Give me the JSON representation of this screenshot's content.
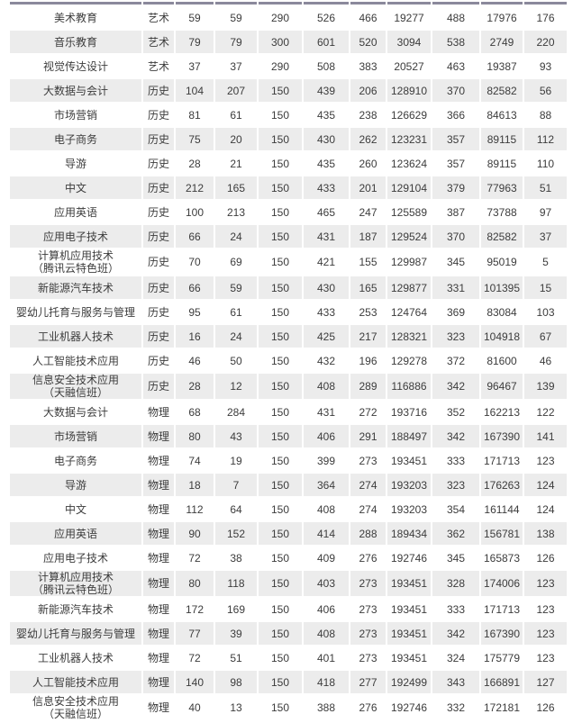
{
  "colors": {
    "row_shaded": "#ececec",
    "top_strip": "#8b899c",
    "text": "#3c3c3c",
    "background": "#ffffff"
  },
  "table": {
    "column_count": 11,
    "rows": [
      {
        "major": "美术教育",
        "category": "艺术",
        "values": [
          "59",
          "59",
          "290",
          "526",
          "466",
          "19277",
          "488",
          "17976",
          "176"
        ]
      },
      {
        "major": "音乐教育",
        "category": "艺术",
        "values": [
          "79",
          "79",
          "300",
          "601",
          "520",
          "3094",
          "538",
          "2749",
          "220"
        ]
      },
      {
        "major": "视觉传达设计",
        "category": "艺术",
        "values": [
          "37",
          "37",
          "290",
          "508",
          "383",
          "20527",
          "463",
          "19387",
          "93"
        ]
      },
      {
        "major": "大数据与会计",
        "category": "历史",
        "values": [
          "104",
          "207",
          "150",
          "439",
          "206",
          "128910",
          "370",
          "82582",
          "56"
        ]
      },
      {
        "major": "市场营销",
        "category": "历史",
        "values": [
          "81",
          "61",
          "150",
          "435",
          "238",
          "126629",
          "366",
          "84613",
          "88"
        ]
      },
      {
        "major": "电子商务",
        "category": "历史",
        "values": [
          "75",
          "20",
          "150",
          "430",
          "262",
          "123231",
          "357",
          "89115",
          "112"
        ]
      },
      {
        "major": "导游",
        "category": "历史",
        "values": [
          "28",
          "21",
          "150",
          "435",
          "260",
          "123624",
          "357",
          "89115",
          "110"
        ]
      },
      {
        "major": "中文",
        "category": "历史",
        "values": [
          "212",
          "165",
          "150",
          "433",
          "201",
          "129104",
          "379",
          "77963",
          "51"
        ]
      },
      {
        "major": "应用英语",
        "category": "历史",
        "values": [
          "100",
          "213",
          "150",
          "465",
          "247",
          "125589",
          "387",
          "73788",
          "97"
        ]
      },
      {
        "major": "应用电子技术",
        "category": "历史",
        "values": [
          "66",
          "24",
          "150",
          "431",
          "187",
          "129524",
          "370",
          "82582",
          "37"
        ]
      },
      {
        "major": "计算机应用技术\n（腾讯云特色班）",
        "category": "历史",
        "values": [
          "70",
          "69",
          "150",
          "421",
          "155",
          "129987",
          "345",
          "95019",
          "5"
        ]
      },
      {
        "major": "新能源汽车技术",
        "category": "历史",
        "values": [
          "66",
          "59",
          "150",
          "430",
          "165",
          "129877",
          "331",
          "101395",
          "15"
        ]
      },
      {
        "major": "婴幼儿托育与服务与管理",
        "category": "历史",
        "values": [
          "95",
          "61",
          "150",
          "433",
          "253",
          "124764",
          "369",
          "83084",
          "103"
        ]
      },
      {
        "major": "工业机器人技术",
        "category": "历史",
        "values": [
          "16",
          "24",
          "150",
          "425",
          "217",
          "128321",
          "323",
          "104918",
          "67"
        ]
      },
      {
        "major": "人工智能技术应用",
        "category": "历史",
        "values": [
          "46",
          "50",
          "150",
          "432",
          "196",
          "129278",
          "372",
          "81600",
          "46"
        ]
      },
      {
        "major": "信息安全技术应用\n（天融信班）",
        "category": "历史",
        "values": [
          "28",
          "12",
          "150",
          "408",
          "289",
          "116886",
          "342",
          "96467",
          "139"
        ]
      },
      {
        "major": "大数据与会计",
        "category": "物理",
        "values": [
          "68",
          "284",
          "150",
          "431",
          "272",
          "193716",
          "352",
          "162213",
          "122"
        ]
      },
      {
        "major": "市场营销",
        "category": "物理",
        "values": [
          "80",
          "43",
          "150",
          "406",
          "291",
          "188497",
          "342",
          "167390",
          "141"
        ]
      },
      {
        "major": "电子商务",
        "category": "物理",
        "values": [
          "74",
          "19",
          "150",
          "399",
          "273",
          "193451",
          "333",
          "171713",
          "123"
        ]
      },
      {
        "major": "导游",
        "category": "物理",
        "values": [
          "18",
          "7",
          "150",
          "364",
          "274",
          "193203",
          "323",
          "176263",
          "124"
        ]
      },
      {
        "major": "中文",
        "category": "物理",
        "values": [
          "112",
          "64",
          "150",
          "408",
          "274",
          "193203",
          "354",
          "161144",
          "124"
        ]
      },
      {
        "major": "应用英语",
        "category": "物理",
        "values": [
          "90",
          "152",
          "150",
          "414",
          "288",
          "189434",
          "362",
          "156781",
          "138"
        ]
      },
      {
        "major": "应用电子技术",
        "category": "物理",
        "values": [
          "72",
          "38",
          "150",
          "409",
          "276",
          "192746",
          "345",
          "165873",
          "126"
        ]
      },
      {
        "major": "计算机应用技术\n（腾讯云特色班）",
        "category": "物理",
        "values": [
          "80",
          "118",
          "150",
          "403",
          "273",
          "193451",
          "328",
          "174006",
          "123"
        ]
      },
      {
        "major": "新能源汽车技术",
        "category": "物理",
        "values": [
          "172",
          "169",
          "150",
          "406",
          "273",
          "193451",
          "333",
          "171713",
          "123"
        ]
      },
      {
        "major": "婴幼儿托育与服务与管理",
        "category": "物理",
        "values": [
          "77",
          "39",
          "150",
          "408",
          "273",
          "193451",
          "342",
          "167390",
          "123"
        ]
      },
      {
        "major": "工业机器人技术",
        "category": "物理",
        "values": [
          "72",
          "51",
          "150",
          "401",
          "273",
          "193451",
          "324",
          "175779",
          "123"
        ]
      },
      {
        "major": "人工智能技术应用",
        "category": "物理",
        "values": [
          "140",
          "98",
          "150",
          "418",
          "277",
          "192499",
          "343",
          "166891",
          "127"
        ]
      },
      {
        "major": "信息安全技术应用\n（天融信班）",
        "category": "物理",
        "values": [
          "40",
          "13",
          "150",
          "388",
          "276",
          "192746",
          "332",
          "172181",
          "126"
        ]
      }
    ]
  }
}
